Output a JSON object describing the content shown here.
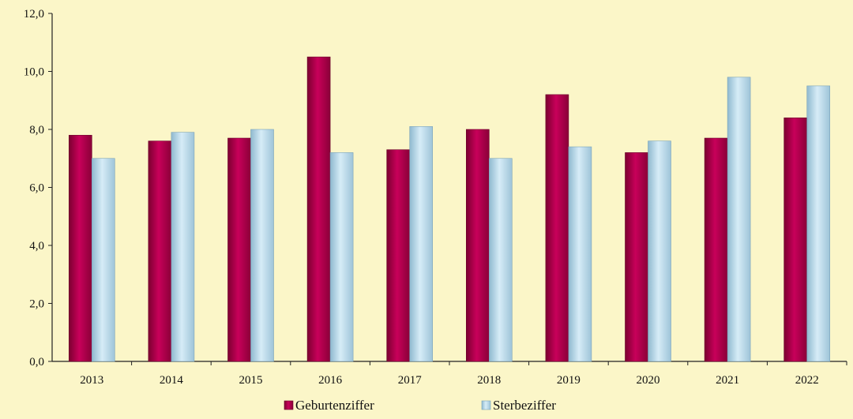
{
  "chart_data": {
    "type": "bar",
    "title": "",
    "xlabel": "",
    "ylabel": "",
    "categories": [
      "2013",
      "2014",
      "2015",
      "2016",
      "2017",
      "2018",
      "2019",
      "2020",
      "2021",
      "2022"
    ],
    "series": [
      {
        "name": "Geburtenziffer",
        "color": "#b8004f",
        "values": [
          7.8,
          7.6,
          7.7,
          10.5,
          7.3,
          8.0,
          9.2,
          7.2,
          7.7,
          8.4
        ]
      },
      {
        "name": "Sterbeziffer",
        "color": "#b9dced",
        "values": [
          7.0,
          7.9,
          8.0,
          7.2,
          8.1,
          7.0,
          7.4,
          7.6,
          9.8,
          9.5
        ]
      }
    ],
    "ylim": [
      0,
      12
    ],
    "yticks": [
      "0,0",
      "2,0",
      "4,0",
      "6,0",
      "8,0",
      "10,0",
      "12,0"
    ],
    "grid": false,
    "legend_position": "bottom"
  }
}
